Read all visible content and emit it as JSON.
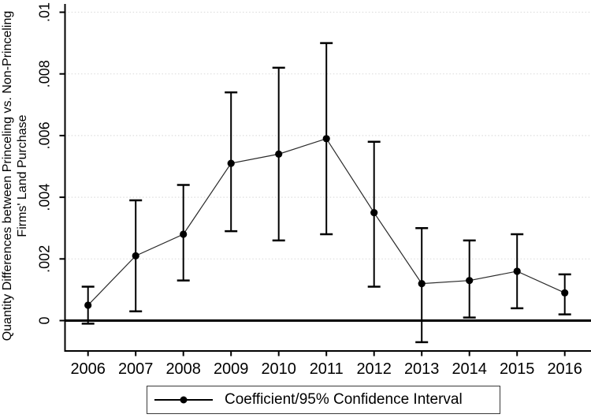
{
  "figure": {
    "background": "#ffffff",
    "ink": "#000000",
    "gridline_color": "#dedede"
  },
  "y_axis": {
    "title_line1": "Quantity Differences between Princeling vs. Non-Princeling",
    "title_line2": "Firms' Land Purchase",
    "tick_labels": [
      "0",
      ".002",
      ".004",
      ".006",
      ".008",
      ".01"
    ],
    "tick_values": [
      0,
      0.002,
      0.004,
      0.006,
      0.008,
      0.01
    ]
  },
  "x_axis": {
    "tick_labels": [
      "2006",
      "2007",
      "2008",
      "2009",
      "2010",
      "2011",
      "2012",
      "2013",
      "2014",
      "2015",
      "2016"
    ]
  },
  "legend": {
    "label": "Coefficient/95% Confidence Interval"
  },
  "chart_data": {
    "type": "line",
    "title": "",
    "xlabel": "",
    "ylabel": "Quantity Differences between Princeling vs. Non-Princeling Firms' Land Purchase",
    "x": [
      2006,
      2007,
      2008,
      2009,
      2010,
      2011,
      2012,
      2013,
      2014,
      2015,
      2016
    ],
    "series": [
      {
        "name": "Coefficient/95% Confidence Interval",
        "values": [
          0.0005,
          0.0021,
          0.0028,
          0.0051,
          0.0054,
          0.0059,
          0.0035,
          0.0012,
          0.0013,
          0.0016,
          0.0009
        ],
        "ci_lower": [
          -0.0001,
          0.0003,
          0.0013,
          0.0029,
          0.0026,
          0.0028,
          0.0011,
          -0.0007,
          0.0001,
          0.0004,
          0.0002
        ],
        "ci_upper": [
          0.0011,
          0.0039,
          0.0044,
          0.0074,
          0.0082,
          0.009,
          0.0058,
          0.003,
          0.0026,
          0.0028,
          0.0015
        ]
      }
    ],
    "marker": "filled-circle",
    "error_bars": "capped",
    "zero_reference_line": true,
    "ylim": [
      -0.00105,
      0.0101
    ],
    "xlim": [
      2005.5,
      2016.55
    ],
    "grid": "horizontal-dotted",
    "legend_position": "bottom-center"
  }
}
